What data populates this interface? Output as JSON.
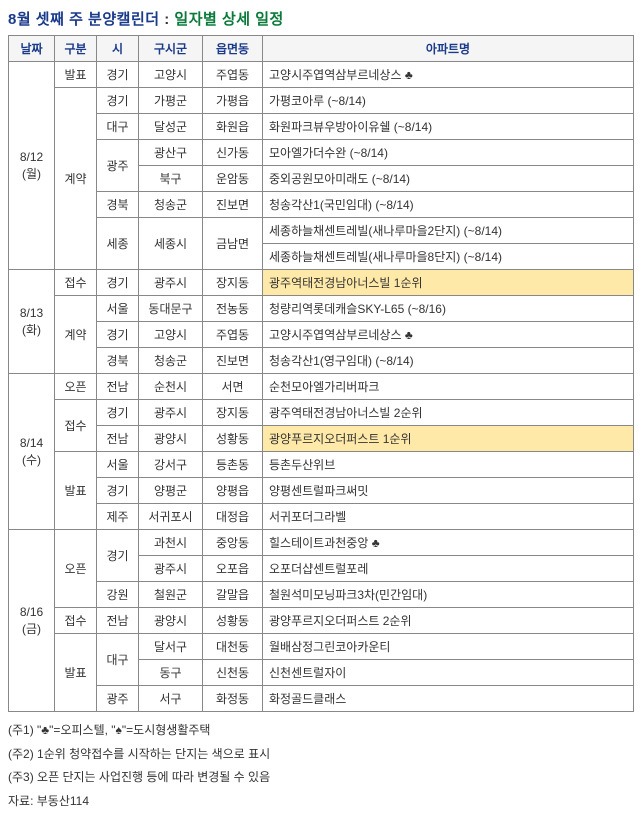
{
  "title_parts": {
    "p1": "8월 셋째 주 분양캘린더",
    "p2": " : ",
    "p3": "일자별 상세 일정"
  },
  "title_colors": {
    "p1": "#1a3a8a",
    "p3": "#0a7a3a"
  },
  "headers": {
    "day": "날짜",
    "cat": "구분",
    "prov": "시",
    "city": "구시군",
    "dong": "읍면동",
    "apt": "아파트명"
  },
  "days": [
    {
      "label": "8/12\n(월)",
      "cats": [
        {
          "label": "발표",
          "rows": [
            {
              "prov": "경기",
              "city": "고양시",
              "dong": "주엽동",
              "apt": "고양시주엽역삼부르네상스 ♣"
            }
          ]
        },
        {
          "label": "계약",
          "rows": [
            {
              "prov": "경기",
              "city": "가평군",
              "dong": "가평읍",
              "apt": "가평코아루 (~8/14)"
            },
            {
              "prov": "대구",
              "city": "달성군",
              "dong": "화원읍",
              "apt": "화원파크뷰우방아이유쉘 (~8/14)"
            },
            {
              "prov": "광주",
              "prov_span": 2,
              "city": "광산구",
              "dong": "신가동",
              "apt": "모아엘가더수완 (~8/14)"
            },
            {
              "city": "북구",
              "dong": "운암동",
              "apt": "중외공원모아미래도 (~8/14)"
            },
            {
              "prov": "경북",
              "city": "청송군",
              "dong": "진보면",
              "apt": "청송각산1(국민임대) (~8/14)"
            },
            {
              "prov": "세종",
              "city": "세종시",
              "dong": "금남면",
              "dong_span": 2,
              "prov_span": 2,
              "city_span": 2,
              "apt": "세종하늘채센트레빌(새나루마을2단지) (~8/14)"
            },
            {
              "apt": "세종하늘채센트레빌(새나루마을8단지) (~8/14)"
            }
          ]
        }
      ]
    },
    {
      "label": "8/13\n(화)",
      "cats": [
        {
          "label": "접수",
          "rows": [
            {
              "prov": "경기",
              "city": "광주시",
              "dong": "장지동",
              "apt": "광주역태전경남아너스빌 1순위",
              "hl": true
            }
          ]
        },
        {
          "label": "계약",
          "rows": [
            {
              "prov": "서울",
              "city": "동대문구",
              "dong": "전농동",
              "apt": "청량리역롯데캐슬SKY-L65 (~8/16)"
            },
            {
              "prov": "경기",
              "city": "고양시",
              "dong": "주엽동",
              "apt": "고양시주엽역삼부르네상스 ♣"
            },
            {
              "prov": "경북",
              "city": "청송군",
              "dong": "진보면",
              "apt": "청송각산1(영구임대) (~8/14)"
            }
          ]
        }
      ]
    },
    {
      "label": "8/14\n(수)",
      "cats": [
        {
          "label": "오픈",
          "rows": [
            {
              "prov": "전남",
              "city": "순천시",
              "dong": "서면",
              "apt": "순천모아엘가리버파크"
            }
          ]
        },
        {
          "label": "접수",
          "rows": [
            {
              "prov": "경기",
              "city": "광주시",
              "dong": "장지동",
              "apt": "광주역태전경남아너스빌 2순위"
            },
            {
              "prov": "전남",
              "city": "광양시",
              "dong": "성황동",
              "apt": "광양푸르지오더퍼스트 1순위",
              "hl": true
            }
          ]
        },
        {
          "label": "발표",
          "rows": [
            {
              "prov": "서울",
              "city": "강서구",
              "dong": "등촌동",
              "apt": "등촌두산위브"
            },
            {
              "prov": "경기",
              "city": "양평군",
              "dong": "양평읍",
              "apt": "양평센트럴파크써밋"
            },
            {
              "prov": "제주",
              "city": "서귀포시",
              "dong": "대정읍",
              "apt": "서귀포더그라벨"
            }
          ]
        }
      ]
    },
    {
      "label": "8/16\n(금)",
      "cats": [
        {
          "label": "오픈",
          "rows": [
            {
              "prov": "경기",
              "prov_span": 2,
              "city": "과천시",
              "dong": "중앙동",
              "apt": "힐스테이트과천중앙 ♣"
            },
            {
              "city": "광주시",
              "dong": "오포읍",
              "apt": "오포더샵센트럴포레"
            },
            {
              "prov": "강원",
              "city": "철원군",
              "dong": "갈말읍",
              "apt": "철원석미모닝파크3차(민간임대)"
            }
          ]
        },
        {
          "label": "접수",
          "rows": [
            {
              "prov": "전남",
              "city": "광양시",
              "dong": "성황동",
              "apt": "광양푸르지오더퍼스트 2순위"
            }
          ]
        },
        {
          "label": "발표",
          "rows": [
            {
              "prov": "대구",
              "prov_span": 2,
              "city": "달서구",
              "dong": "대천동",
              "apt": "월배삼정그린코아카운티"
            },
            {
              "city": "동구",
              "dong": "신천동",
              "apt": "신천센트럴자이"
            },
            {
              "prov": "광주",
              "city": "서구",
              "dong": "화정동",
              "apt": "화정골드클래스"
            }
          ]
        }
      ]
    }
  ],
  "notes": {
    "n1": "(주1) \"♣\"=오피스텔, \"♠\"=도시형생활주택",
    "n2": "(주2) 1순위 청약접수를 시작하는 단지는 색으로 표시",
    "n3": "(주3) 오픈 단지는 사업진행 등에 따라 변경될 수 있음",
    "src": "자료: 부동산114"
  },
  "colors": {
    "highlight_bg": "#ffe9a8",
    "header_text": "#1a3a8a",
    "border": "#888888"
  }
}
